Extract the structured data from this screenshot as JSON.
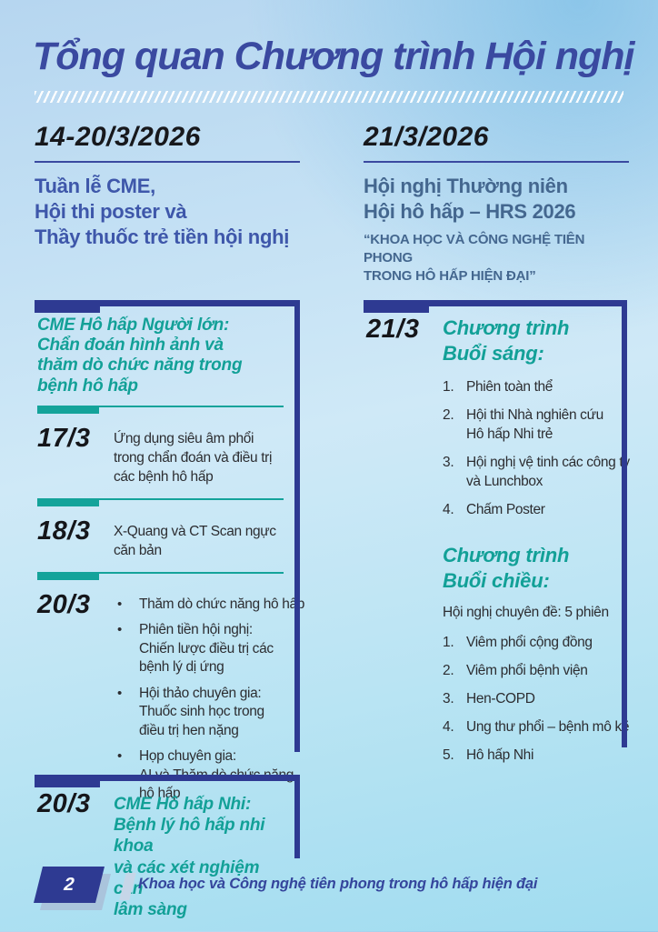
{
  "ui": {
    "bullet": "•"
  },
  "colors": {
    "navy": "#2e3a92",
    "title_indigo": "#3a49a0",
    "subtitle_blue": "#3e57aa",
    "steel_blue": "#44678f",
    "teal": "#12a097",
    "text_dark": "#2c2d31",
    "background_light_blue": "#cfe9f7"
  },
  "header": {
    "title": "Tổng quan Chương trình Hội nghị"
  },
  "left_column": {
    "date_range": "14-20/3/2026",
    "subtitle_lines": [
      "Tuần lễ CME,",
      "Hội thi poster và",
      "Thầy thuốc trẻ tiền hội nghị"
    ],
    "adult_cme": {
      "heading_lines": [
        "CME Hô hấp Người lớn:",
        "Chẩn đoán hình ảnh và",
        "thăm dò chức năng trong",
        "bệnh hô hấp"
      ],
      "rows": [
        {
          "date": "17/3",
          "text_lines": [
            "Ứng dụng siêu âm phổi",
            "trong chẩn đoán và điều trị",
            "các bệnh hô hấp"
          ]
        },
        {
          "date": "18/3",
          "text_lines": [
            "X-Quang và CT Scan ngực",
            "căn bản"
          ]
        },
        {
          "date": "20/3",
          "bullets": [
            {
              "lines": [
                "Thăm dò chức năng hô hấp"
              ]
            },
            {
              "lines": [
                "Phiên tiền hội nghị:",
                "Chiến lược điều trị các",
                "bệnh lý dị ứng"
              ]
            },
            {
              "lines": [
                "Hội thảo chuyên gia:",
                "Thuốc sinh học trong",
                "điều trị hen nặng"
              ]
            },
            {
              "lines": [
                "Họp chuyên gia:",
                "AI và Thăm dò chức năng",
                "hô hấp"
              ]
            }
          ]
        }
      ]
    },
    "pediatric_cme": {
      "date": "20/3",
      "heading_lines": [
        "CME Hô hấp Nhi:",
        "Bệnh lý hô hấp nhi khoa",
        "và các xét nghiệm cận",
        "lâm sàng"
      ]
    }
  },
  "right_column": {
    "date": "21/3/2026",
    "subtitle_lines": [
      "Hội nghị Thường niên",
      "Hội hô hấp – HRS 2026"
    ],
    "quote_lines": [
      "“KHOA HỌC VÀ CÔNG NGHỆ TIÊN PHONG",
      "TRONG HÔ HẤP HIỆN ĐẠI”"
    ],
    "day_schedule": {
      "date": "21/3",
      "morning": {
        "heading_lines": [
          "Chương trình",
          "Buổi sáng:"
        ],
        "items": [
          {
            "num": "1.",
            "lines": [
              "Phiên toàn thể"
            ]
          },
          {
            "num": "2.",
            "lines": [
              "Hội thi Nhà nghiên cứu",
              "Hô hấp Nhi trẻ"
            ]
          },
          {
            "num": "3.",
            "lines": [
              "Hội nghị vệ tinh các công ty",
              "và Lunchbox"
            ]
          },
          {
            "num": "4.",
            "lines": [
              "Chấm Poster"
            ]
          }
        ]
      },
      "afternoon": {
        "heading_lines": [
          "Chương trình",
          "Buổi chiều:"
        ],
        "intro": "Hội nghị chuyên đề: 5 phiên",
        "items": [
          {
            "num": "1.",
            "lines": [
              "Viêm phổi cộng đồng"
            ]
          },
          {
            "num": "2.",
            "lines": [
              "Viêm phổi bệnh viện"
            ]
          },
          {
            "num": "3.",
            "lines": [
              "Hen-COPD"
            ]
          },
          {
            "num": "4.",
            "lines": [
              "Ung thư phổi – bệnh mô kẽ"
            ]
          },
          {
            "num": "5.",
            "lines": [
              "Hô hấp Nhi"
            ]
          }
        ]
      }
    }
  },
  "footer": {
    "page_number": "2",
    "tagline": "Khoa học và Công nghệ tiên phong trong hô hấp hiện đại"
  }
}
